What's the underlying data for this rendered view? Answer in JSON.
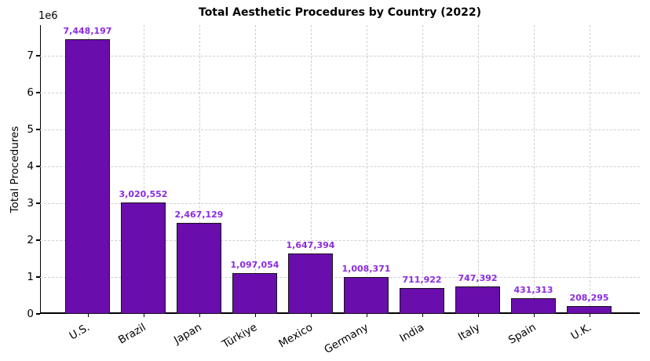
{
  "chart_data": {
    "type": "bar",
    "title": "Total Aesthetic Procedures by Country (2022)",
    "xlabel": "",
    "ylabel": "Total Procedures",
    "y_offset_label": "1e6",
    "categories": [
      "U.S.",
      "Brazil",
      "Japan",
      "Türkiye",
      "Mexico",
      "Germany",
      "India",
      "Italy",
      "Spain",
      "U.K."
    ],
    "values": [
      7448197,
      3020552,
      2467129,
      1097054,
      1647394,
      1008371,
      711922,
      747392,
      431313,
      208295
    ],
    "value_labels": [
      "7,448,197",
      "3,020,552",
      "2,467,129",
      "1,097,054",
      "1,647,394",
      "1,008,371",
      "711,922",
      "747,392",
      "431,313",
      "208,295"
    ],
    "ylim": [
      0,
      7830000
    ],
    "y_ticks": [
      0,
      1,
      2,
      3,
      4,
      5,
      6,
      7
    ],
    "y_tick_multiplier": 1000000,
    "grid": true,
    "grid_style": "dashed",
    "legend": null,
    "colors": {
      "bar_fill": "#6A0DAD",
      "bar_edge": "#151515",
      "value_label": "#8A2BE2",
      "gridline": "#d0d0d0",
      "axis": "#000000",
      "text": "#000000",
      "background": "#ffffff"
    }
  }
}
